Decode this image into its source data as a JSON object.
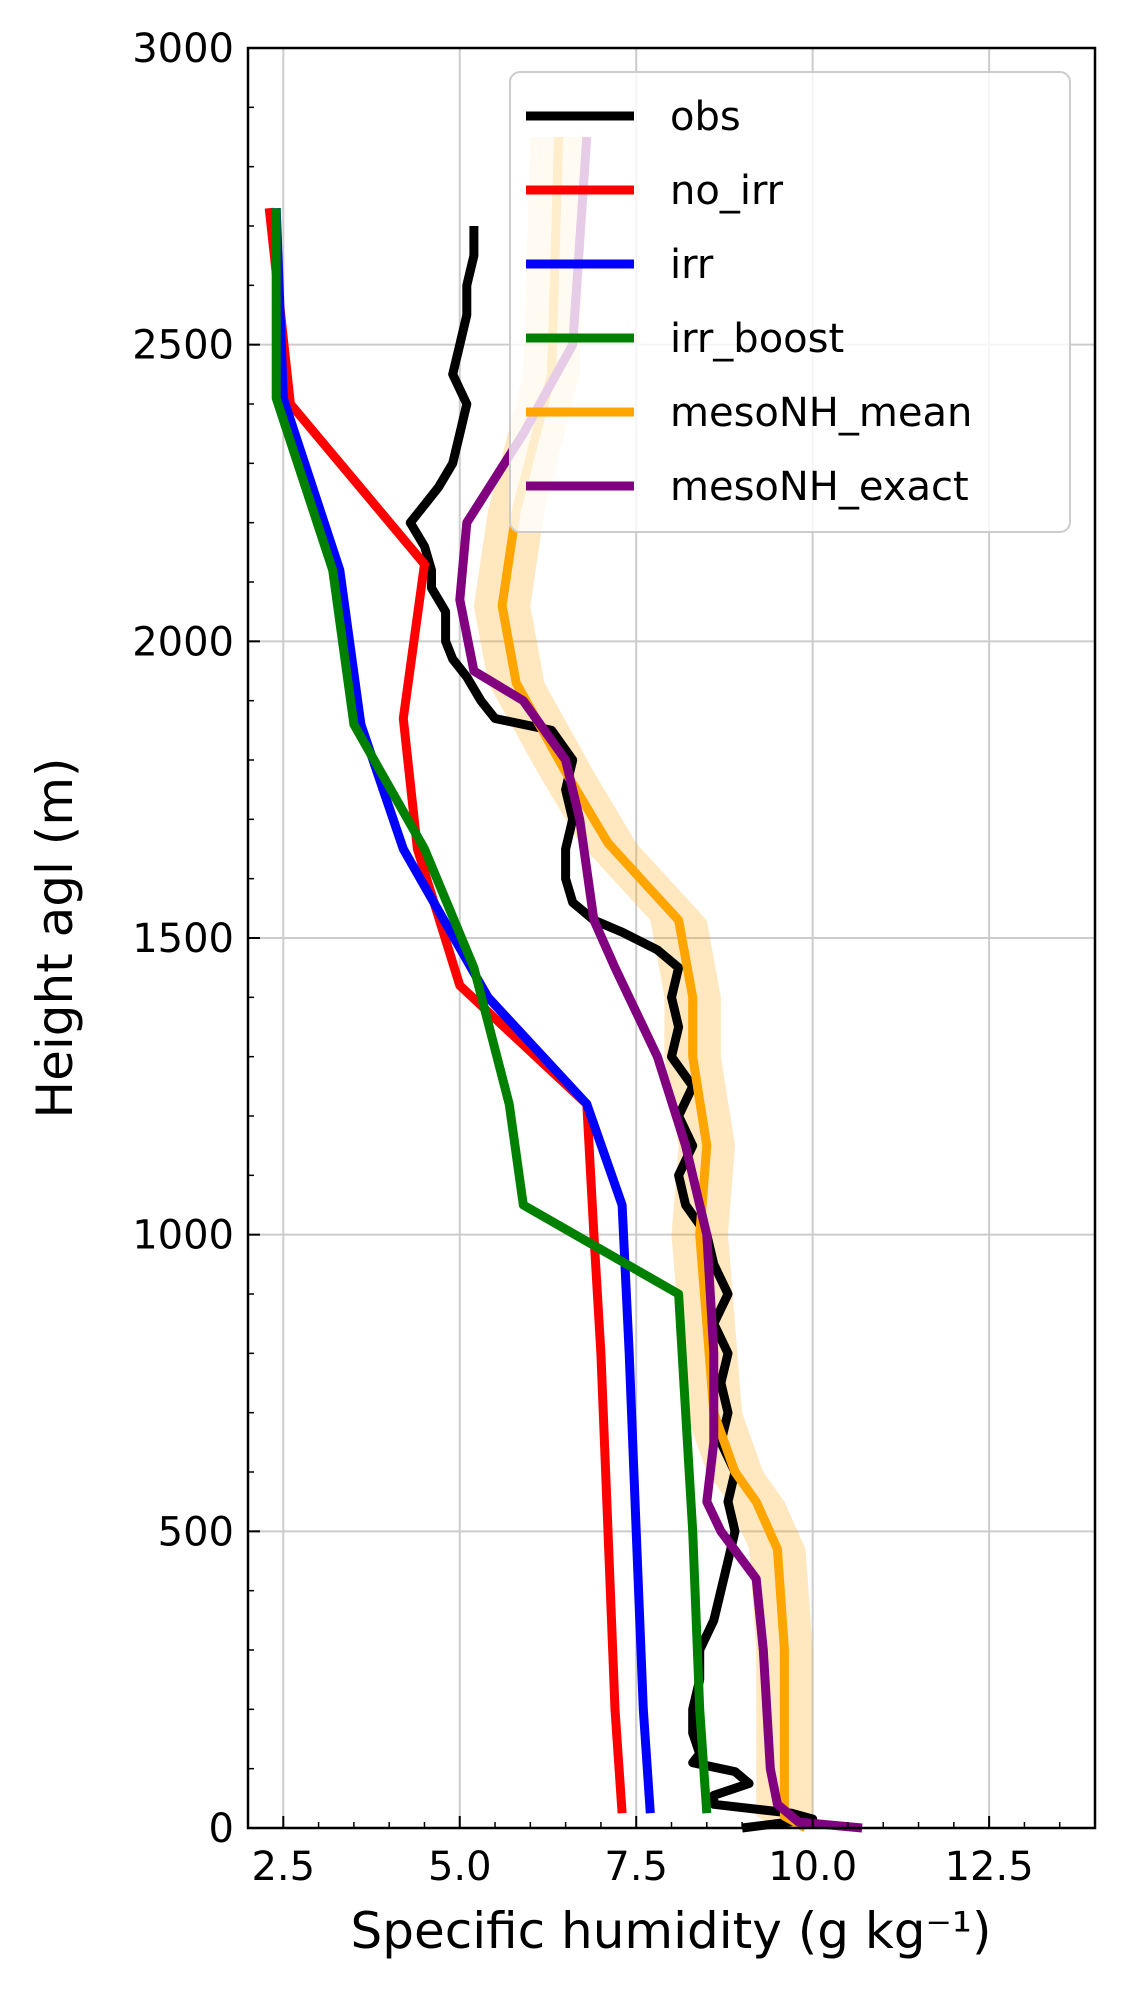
{
  "chart_data": {
    "type": "line",
    "xlabel": "Specific humidity (g kg⁻¹)",
    "ylabel": "Height agl (m)",
    "xlim": [
      2.0,
      14.0
    ],
    "ylim": [
      0,
      3000
    ],
    "x_ticks": [
      2.5,
      5.0,
      7.5,
      10.0,
      12.5
    ],
    "x_tick_labels": [
      "2.5",
      "5.0",
      "7.5",
      "10.0",
      "12.5"
    ],
    "y_ticks": [
      0,
      500,
      1000,
      1500,
      2000,
      2500,
      3000
    ],
    "y_tick_labels": [
      "0",
      "500",
      "1000",
      "1500",
      "2000",
      "2500",
      "3000"
    ],
    "grid": true,
    "legend_position": "top-right",
    "series": [
      {
        "name": "obs",
        "color": "#000000",
        "points": [
          [
            9.0,
            0
          ],
          [
            10.0,
            15
          ],
          [
            9.7,
            25
          ],
          [
            8.6,
            40
          ],
          [
            8.6,
            55
          ],
          [
            9.1,
            75
          ],
          [
            8.9,
            95
          ],
          [
            8.3,
            110
          ],
          [
            8.4,
            125
          ],
          [
            8.3,
            160
          ],
          [
            8.3,
            200
          ],
          [
            8.4,
            250
          ],
          [
            8.4,
            300
          ],
          [
            8.6,
            350
          ],
          [
            8.7,
            400
          ],
          [
            8.8,
            450
          ],
          [
            8.9,
            500
          ],
          [
            8.8,
            550
          ],
          [
            8.9,
            600
          ],
          [
            8.7,
            650
          ],
          [
            8.8,
            700
          ],
          [
            8.7,
            750
          ],
          [
            8.8,
            800
          ],
          [
            8.6,
            850
          ],
          [
            8.8,
            900
          ],
          [
            8.6,
            950
          ],
          [
            8.5,
            1000
          ],
          [
            8.2,
            1050
          ],
          [
            8.1,
            1100
          ],
          [
            8.3,
            1150
          ],
          [
            8.1,
            1200
          ],
          [
            8.3,
            1250
          ],
          [
            8.0,
            1300
          ],
          [
            8.1,
            1350
          ],
          [
            8.0,
            1400
          ],
          [
            8.1,
            1450
          ],
          [
            7.8,
            1480
          ],
          [
            7.3,
            1510
          ],
          [
            6.9,
            1530
          ],
          [
            6.6,
            1560
          ],
          [
            6.5,
            1600
          ],
          [
            6.5,
            1650
          ],
          [
            6.6,
            1700
          ],
          [
            6.5,
            1750
          ],
          [
            6.6,
            1800
          ],
          [
            6.3,
            1850
          ],
          [
            5.5,
            1870
          ],
          [
            5.3,
            1900
          ],
          [
            5.1,
            1940
          ],
          [
            4.9,
            1970
          ],
          [
            4.8,
            2000
          ],
          [
            4.8,
            2050
          ],
          [
            4.6,
            2090
          ],
          [
            4.6,
            2120
          ],
          [
            4.5,
            2160
          ],
          [
            4.3,
            2200
          ],
          [
            4.5,
            2230
          ],
          [
            4.7,
            2260
          ],
          [
            4.9,
            2300
          ],
          [
            5.0,
            2350
          ],
          [
            5.1,
            2400
          ],
          [
            4.9,
            2450
          ],
          [
            5.0,
            2500
          ],
          [
            5.1,
            2550
          ],
          [
            5.1,
            2600
          ],
          [
            5.2,
            2650
          ],
          [
            5.2,
            2700
          ]
        ]
      },
      {
        "name": "no_irr",
        "color": "#ff0000",
        "points": [
          [
            7.3,
            25
          ],
          [
            7.2,
            200
          ],
          [
            7.1,
            500
          ],
          [
            7.0,
            800
          ],
          [
            6.9,
            1000
          ],
          [
            6.8,
            1220
          ],
          [
            5.0,
            1420
          ],
          [
            4.4,
            1650
          ],
          [
            4.2,
            1870
          ],
          [
            4.5,
            2130
          ],
          [
            2.6,
            2400
          ],
          [
            2.3,
            2730
          ]
        ]
      },
      {
        "name": "irr",
        "color": "#0000ff",
        "points": [
          [
            7.7,
            25
          ],
          [
            7.6,
            200
          ],
          [
            7.5,
            500
          ],
          [
            7.4,
            800
          ],
          [
            7.3,
            1050
          ],
          [
            6.8,
            1220
          ],
          [
            5.4,
            1400
          ],
          [
            4.2,
            1650
          ],
          [
            3.6,
            1860
          ],
          [
            3.3,
            2120
          ],
          [
            2.5,
            2410
          ],
          [
            2.4,
            2730
          ]
        ]
      },
      {
        "name": "irr_boost",
        "color": "#008000",
        "points": [
          [
            8.5,
            25
          ],
          [
            8.4,
            200
          ],
          [
            8.3,
            500
          ],
          [
            8.1,
            900
          ],
          [
            5.9,
            1050
          ],
          [
            5.7,
            1220
          ],
          [
            5.2,
            1450
          ],
          [
            4.5,
            1650
          ],
          [
            3.5,
            1860
          ],
          [
            3.2,
            2120
          ],
          [
            2.4,
            2410
          ],
          [
            2.4,
            2730
          ]
        ]
      },
      {
        "name": "mesoNH_mean",
        "color": "#ffa500",
        "points": [
          [
            9.9,
            0
          ],
          [
            9.6,
            20
          ],
          [
            9.6,
            100
          ],
          [
            9.6,
            300
          ],
          [
            9.5,
            470
          ],
          [
            9.2,
            550
          ],
          [
            8.9,
            600
          ],
          [
            8.6,
            700
          ],
          [
            8.5,
            850
          ],
          [
            8.4,
            1000
          ],
          [
            8.5,
            1150
          ],
          [
            8.3,
            1300
          ],
          [
            8.3,
            1400
          ],
          [
            8.1,
            1530
          ],
          [
            7.1,
            1660
          ],
          [
            6.5,
            1780
          ],
          [
            5.8,
            1930
          ],
          [
            5.6,
            2060
          ],
          [
            5.8,
            2220
          ],
          [
            6.3,
            2450
          ],
          [
            6.4,
            2850
          ]
        ],
        "band": [
          0.4,
          0.4
        ]
      },
      {
        "name": "mesoNH_exact",
        "color": "#800080",
        "points": [
          [
            10.7,
            0
          ],
          [
            9.8,
            10
          ],
          [
            9.5,
            40
          ],
          [
            9.4,
            100
          ],
          [
            9.3,
            300
          ],
          [
            9.2,
            420
          ],
          [
            8.7,
            500
          ],
          [
            8.5,
            550
          ],
          [
            8.6,
            650
          ],
          [
            8.6,
            800
          ],
          [
            8.5,
            1000
          ],
          [
            8.2,
            1150
          ],
          [
            7.8,
            1300
          ],
          [
            7.2,
            1450
          ],
          [
            6.9,
            1530
          ],
          [
            6.7,
            1700
          ],
          [
            6.5,
            1800
          ],
          [
            5.9,
            1900
          ],
          [
            5.2,
            1950
          ],
          [
            5.0,
            2070
          ],
          [
            5.1,
            2200
          ],
          [
            5.9,
            2350
          ],
          [
            6.6,
            2500
          ],
          [
            6.8,
            2850
          ]
        ]
      }
    ]
  }
}
